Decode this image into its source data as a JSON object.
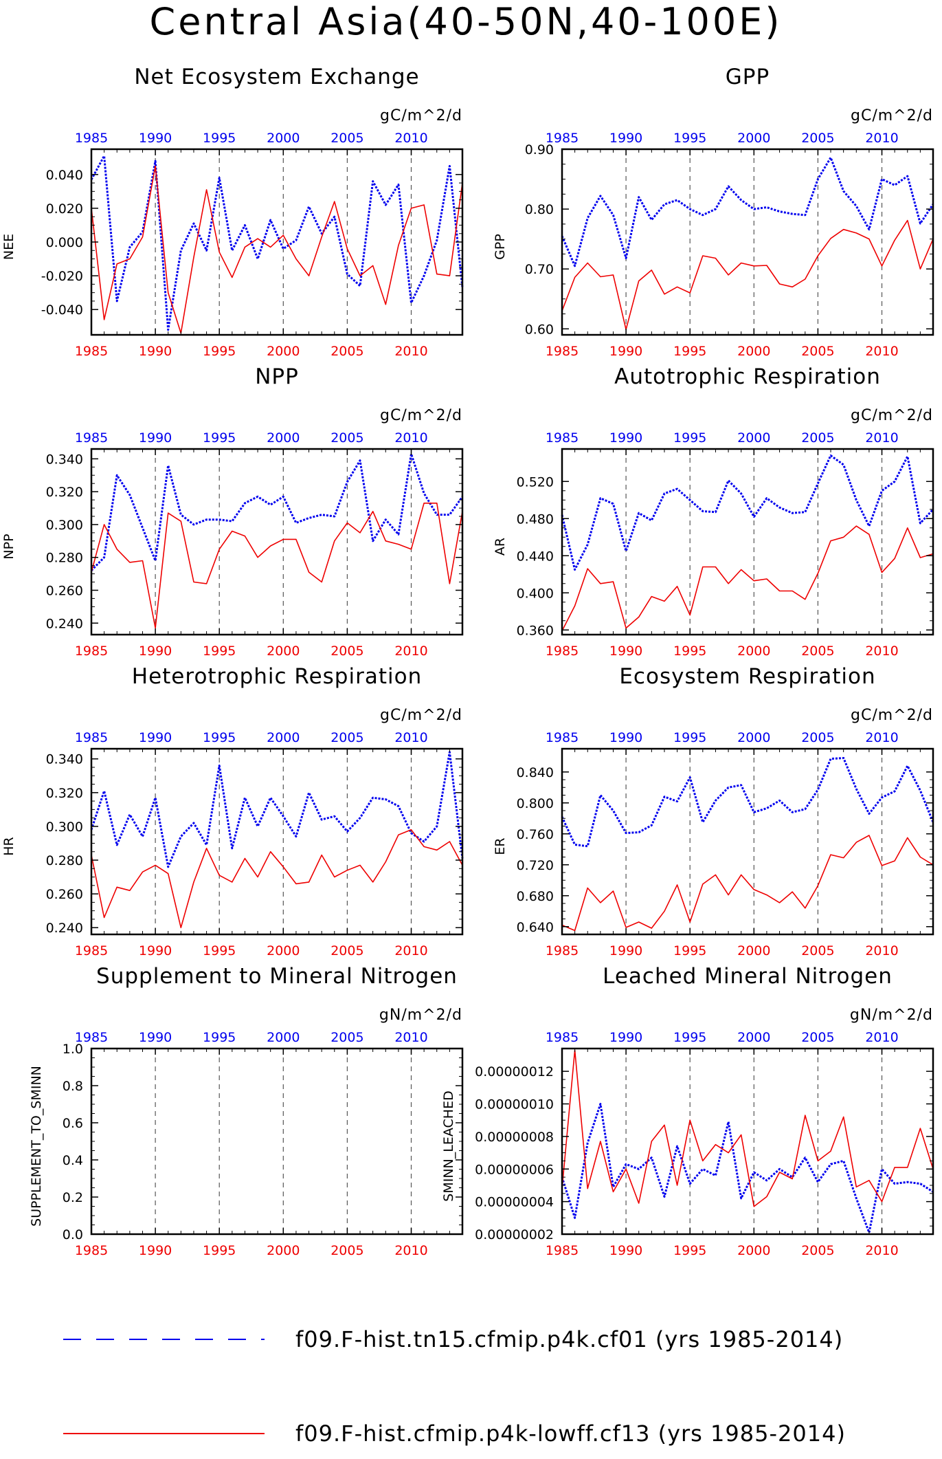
{
  "title": "Central Asia(40-50N,40-100E)",
  "colors": {
    "case1": "#0000ee",
    "case2": "#ee0000",
    "axis": "#000000",
    "grid": "#555555"
  },
  "legend": [
    {
      "label": "f09.F-hist.tn15.cfmip.p4k.cf01 (yrs 1985-2014)",
      "color": "#0000ee",
      "style": "dashed"
    },
    {
      "label": "f09.F-hist.cfmip.p4k-lowff.cf13 (yrs 1985-2014)",
      "color": "#ee0000",
      "style": "solid"
    }
  ],
  "chart_data": [
    {
      "type": "line",
      "title": "Net Ecosystem Exchange",
      "ylabel": "NEE",
      "units": "gC/m^2/d",
      "xlim": [
        1985,
        2014
      ],
      "xticks": [
        1985,
        1990,
        1995,
        2000,
        2005,
        2010
      ],
      "ylim": [
        -0.055,
        0.055
      ],
      "yticks": [
        -0.04,
        -0.02,
        0.0,
        0.02,
        0.04
      ],
      "ytick_labels": [
        "-0.040",
        "-0.020",
        "0.000",
        "0.020",
        "0.040"
      ],
      "x": [
        1985,
        1986,
        1987,
        1988,
        1989,
        1990,
        1991,
        1992,
        1993,
        1994,
        1995,
        1996,
        1997,
        1998,
        1999,
        2000,
        2001,
        2002,
        2003,
        2004,
        2005,
        2006,
        2007,
        2008,
        2009,
        2010,
        2011,
        2012,
        2013,
        2014
      ],
      "series": [
        {
          "color": "#0000ee",
          "style": "dashed",
          "values": [
            0.037,
            0.051,
            -0.035,
            -0.003,
            0.006,
            0.048,
            -0.052,
            -0.005,
            0.011,
            -0.005,
            0.038,
            -0.005,
            0.01,
            -0.01,
            0.013,
            -0.004,
            0.001,
            0.021,
            0.005,
            0.015,
            -0.019,
            -0.026,
            0.036,
            0.022,
            0.034,
            -0.036,
            -0.02,
            0.001,
            0.045,
            -0.027
          ]
        },
        {
          "color": "#ee0000",
          "style": "solid",
          "values": [
            0.02,
            -0.046,
            -0.013,
            -0.01,
            0.003,
            0.045,
            -0.03,
            -0.054,
            -0.009,
            0.031,
            -0.006,
            -0.021,
            -0.003,
            0.002,
            -0.003,
            0.004,
            -0.01,
            -0.02,
            0.003,
            0.024,
            -0.004,
            -0.02,
            -0.014,
            -0.037,
            -0.002,
            0.02,
            0.022,
            -0.019,
            -0.02,
            0.035
          ]
        }
      ]
    },
    {
      "type": "line",
      "title": "GPP",
      "ylabel": "GPP",
      "units": "gC/m^2/d",
      "xlim": [
        1985,
        2014
      ],
      "xticks": [
        1985,
        1990,
        1995,
        2000,
        2005,
        2010
      ],
      "ylim": [
        0.59,
        0.9
      ],
      "yticks": [
        0.6,
        0.7,
        0.8,
        0.9
      ],
      "ytick_labels": [
        "0.60",
        "0.70",
        "0.80",
        "0.90"
      ],
      "x": [
        1985,
        1986,
        1987,
        1988,
        1989,
        1990,
        1991,
        1992,
        1993,
        1994,
        1995,
        1996,
        1997,
        1998,
        1999,
        2000,
        2001,
        2002,
        2003,
        2004,
        2005,
        2006,
        2007,
        2008,
        2009,
        2010,
        2011,
        2012,
        2013,
        2014
      ],
      "series": [
        {
          "color": "#0000ee",
          "style": "dashed",
          "values": [
            0.755,
            0.705,
            0.785,
            0.822,
            0.79,
            0.718,
            0.82,
            0.782,
            0.808,
            0.815,
            0.8,
            0.79,
            0.8,
            0.838,
            0.815,
            0.8,
            0.803,
            0.796,
            0.792,
            0.79,
            0.85,
            0.886,
            0.83,
            0.805,
            0.766,
            0.85,
            0.84,
            0.855,
            0.776,
            0.808
          ]
        },
        {
          "color": "#ee0000",
          "style": "solid",
          "values": [
            0.63,
            0.686,
            0.71,
            0.687,
            0.69,
            0.599,
            0.68,
            0.698,
            0.658,
            0.67,
            0.66,
            0.722,
            0.718,
            0.69,
            0.71,
            0.705,
            0.706,
            0.675,
            0.67,
            0.683,
            0.722,
            0.751,
            0.766,
            0.76,
            0.75,
            0.705,
            0.748,
            0.781,
            0.7,
            0.75
          ]
        }
      ]
    },
    {
      "type": "line",
      "title": "NPP",
      "ylabel": "NPP",
      "units": "gC/m^2/d",
      "xlim": [
        1985,
        2014
      ],
      "xticks": [
        1985,
        1990,
        1995,
        2000,
        2005,
        2010
      ],
      "ylim": [
        0.233,
        0.346
      ],
      "yticks": [
        0.24,
        0.26,
        0.28,
        0.3,
        0.32,
        0.34
      ],
      "ytick_labels": [
        "0.240",
        "0.260",
        "0.280",
        "0.300",
        "0.320",
        "0.340"
      ],
      "x": [
        1985,
        1986,
        1987,
        1988,
        1989,
        1990,
        1991,
        1992,
        1993,
        1994,
        1995,
        1996,
        1997,
        1998,
        1999,
        2000,
        2001,
        2002,
        2003,
        2004,
        2005,
        2006,
        2007,
        2008,
        2009,
        2010,
        2011,
        2012,
        2013,
        2014
      ],
      "series": [
        {
          "color": "#0000ee",
          "style": "dashed",
          "values": [
            0.272,
            0.28,
            0.33,
            0.318,
            0.298,
            0.278,
            0.336,
            0.306,
            0.3,
            0.303,
            0.303,
            0.302,
            0.313,
            0.317,
            0.312,
            0.317,
            0.301,
            0.304,
            0.306,
            0.305,
            0.326,
            0.339,
            0.29,
            0.303,
            0.294,
            0.343,
            0.319,
            0.306,
            0.306,
            0.317
          ]
        },
        {
          "color": "#ee0000",
          "style": "solid",
          "values": [
            0.271,
            0.3,
            0.285,
            0.277,
            0.278,
            0.237,
            0.307,
            0.302,
            0.265,
            0.264,
            0.285,
            0.296,
            0.293,
            0.28,
            0.287,
            0.291,
            0.291,
            0.271,
            0.265,
            0.29,
            0.301,
            0.295,
            0.308,
            0.29,
            0.288,
            0.285,
            0.313,
            0.313,
            0.264,
            0.308
          ]
        }
      ]
    },
    {
      "type": "line",
      "title": "Autotrophic Respiration",
      "ylabel": "AR",
      "units": "gC/m^2/d",
      "xlim": [
        1985,
        2014
      ],
      "xticks": [
        1985,
        1990,
        1995,
        2000,
        2005,
        2010
      ],
      "ylim": [
        0.355,
        0.555
      ],
      "yticks": [
        0.36,
        0.4,
        0.44,
        0.48,
        0.52
      ],
      "ytick_labels": [
        "0.360",
        "0.400",
        "0.440",
        "0.480",
        "0.520"
      ],
      "x": [
        1985,
        1986,
        1987,
        1988,
        1989,
        1990,
        1991,
        1992,
        1993,
        1994,
        1995,
        1996,
        1997,
        1998,
        1999,
        2000,
        2001,
        2002,
        2003,
        2004,
        2005,
        2006,
        2007,
        2008,
        2009,
        2010,
        2011,
        2012,
        2013,
        2014
      ],
      "series": [
        {
          "color": "#0000ee",
          "style": "dashed",
          "values": [
            0.484,
            0.425,
            0.452,
            0.502,
            0.496,
            0.445,
            0.486,
            0.478,
            0.507,
            0.512,
            0.5,
            0.488,
            0.487,
            0.521,
            0.507,
            0.482,
            0.502,
            0.492,
            0.486,
            0.487,
            0.518,
            0.548,
            0.538,
            0.5,
            0.472,
            0.51,
            0.52,
            0.547,
            0.475,
            0.49
          ]
        },
        {
          "color": "#ee0000",
          "style": "solid",
          "values": [
            0.359,
            0.386,
            0.426,
            0.41,
            0.412,
            0.362,
            0.374,
            0.396,
            0.391,
            0.407,
            0.376,
            0.428,
            0.428,
            0.41,
            0.425,
            0.413,
            0.415,
            0.402,
            0.402,
            0.393,
            0.421,
            0.456,
            0.46,
            0.472,
            0.463,
            0.422,
            0.437,
            0.47,
            0.438,
            0.442
          ]
        }
      ]
    },
    {
      "type": "line",
      "title": "Heterotrophic Respiration",
      "ylabel": "HR",
      "units": "gC/m^2/d",
      "xlim": [
        1985,
        2014
      ],
      "xticks": [
        1985,
        1990,
        1995,
        2000,
        2005,
        2010
      ],
      "ylim": [
        0.236,
        0.346
      ],
      "yticks": [
        0.24,
        0.26,
        0.28,
        0.3,
        0.32,
        0.34
      ],
      "ytick_labels": [
        "0.240",
        "0.260",
        "0.280",
        "0.300",
        "0.320",
        "0.340"
      ],
      "x": [
        1985,
        1986,
        1987,
        1988,
        1989,
        1990,
        1991,
        1992,
        1993,
        1994,
        1995,
        1996,
        1997,
        1998,
        1999,
        2000,
        2001,
        2002,
        2003,
        2004,
        2005,
        2006,
        2007,
        2008,
        2009,
        2010,
        2011,
        2012,
        2013,
        2014
      ],
      "series": [
        {
          "color": "#0000ee",
          "style": "dashed",
          "values": [
            0.298,
            0.321,
            0.289,
            0.307,
            0.294,
            0.317,
            0.276,
            0.294,
            0.302,
            0.289,
            0.336,
            0.287,
            0.317,
            0.3,
            0.317,
            0.306,
            0.294,
            0.32,
            0.304,
            0.306,
            0.297,
            0.305,
            0.317,
            0.316,
            0.312,
            0.296,
            0.291,
            0.3,
            0.344,
            0.281
          ]
        },
        {
          "color": "#ee0000",
          "style": "solid",
          "values": [
            0.283,
            0.246,
            0.264,
            0.262,
            0.273,
            0.277,
            0.272,
            0.24,
            0.267,
            0.287,
            0.271,
            0.267,
            0.281,
            0.27,
            0.285,
            0.276,
            0.266,
            0.267,
            0.283,
            0.27,
            0.274,
            0.277,
            0.267,
            0.279,
            0.295,
            0.298,
            0.288,
            0.286,
            0.291,
            0.277
          ]
        }
      ]
    },
    {
      "type": "line",
      "title": "Ecosystem Respiration",
      "ylabel": "ER",
      "units": "gC/m^2/d",
      "xlim": [
        1985,
        2014
      ],
      "xticks": [
        1985,
        1990,
        1995,
        2000,
        2005,
        2010
      ],
      "ylim": [
        0.63,
        0.87
      ],
      "yticks": [
        0.64,
        0.68,
        0.72,
        0.76,
        0.8,
        0.84
      ],
      "ytick_labels": [
        "0.640",
        "0.680",
        "0.720",
        "0.760",
        "0.800",
        "0.840"
      ],
      "x": [
        1985,
        1986,
        1987,
        1988,
        1989,
        1990,
        1991,
        1992,
        1993,
        1994,
        1995,
        1996,
        1997,
        1998,
        1999,
        2000,
        2001,
        2002,
        2003,
        2004,
        2005,
        2006,
        2007,
        2008,
        2009,
        2010,
        2011,
        2012,
        2013,
        2014
      ],
      "series": [
        {
          "color": "#0000ee",
          "style": "dashed",
          "values": [
            0.782,
            0.746,
            0.744,
            0.81,
            0.79,
            0.761,
            0.762,
            0.771,
            0.808,
            0.802,
            0.833,
            0.775,
            0.803,
            0.82,
            0.823,
            0.788,
            0.793,
            0.803,
            0.788,
            0.792,
            0.817,
            0.857,
            0.858,
            0.818,
            0.786,
            0.807,
            0.815,
            0.848,
            0.816,
            0.775
          ]
        },
        {
          "color": "#ee0000",
          "style": "solid",
          "values": [
            0.642,
            0.635,
            0.69,
            0.671,
            0.686,
            0.639,
            0.646,
            0.638,
            0.66,
            0.694,
            0.646,
            0.695,
            0.707,
            0.681,
            0.707,
            0.688,
            0.681,
            0.671,
            0.685,
            0.664,
            0.693,
            0.733,
            0.729,
            0.749,
            0.758,
            0.719,
            0.725,
            0.755,
            0.73,
            0.72
          ]
        }
      ]
    },
    {
      "type": "line",
      "title": "Supplement to Mineral Nitrogen",
      "ylabel": "SUPPLEMENT_TO_SMINN",
      "units": "gN/m^2/d",
      "xlim": [
        1985,
        2014
      ],
      "xticks": [
        1985,
        1990,
        1995,
        2000,
        2005,
        2010
      ],
      "ylim": [
        0.0,
        1.0
      ],
      "yticks": [
        0.0,
        0.2,
        0.4,
        0.6,
        0.8,
        1.0
      ],
      "ytick_labels": [
        "0.0",
        "0.2",
        "0.4",
        "0.6",
        "0.8",
        "1.0"
      ],
      "x": [],
      "series": []
    },
    {
      "type": "line",
      "title": "Leached Mineral Nitrogen",
      "ylabel": "SMINN_LEACHED",
      "units": "gN/m^2/d",
      "xlim": [
        1985,
        2014
      ],
      "xticks": [
        1985,
        1990,
        1995,
        2000,
        2005,
        2010
      ],
      "ylim": [
        2e-08,
        1.34e-07
      ],
      "yticks": [
        2e-08,
        4e-08,
        6e-08,
        8e-08,
        1e-07,
        1.2e-07
      ],
      "ytick_labels": [
        "0.00000002",
        "0.00000004",
        "0.00000006",
        "0.00000008",
        "0.00000010",
        "0.00000012"
      ],
      "x": [
        1985,
        1986,
        1987,
        1988,
        1989,
        1990,
        1991,
        1992,
        1993,
        1994,
        1995,
        1996,
        1997,
        1998,
        1999,
        2000,
        2001,
        2002,
        2003,
        2004,
        2005,
        2006,
        2007,
        2008,
        2009,
        2010,
        2011,
        2012,
        2013,
        2014
      ],
      "series": [
        {
          "color": "#0000ee",
          "style": "dashed",
          "values": [
            5.5e-08,
            3e-08,
            7.6e-08,
            1e-07,
            4.9e-08,
            6.3e-08,
            6e-08,
            6.7e-08,
            4.3e-08,
            7.4e-08,
            5.1e-08,
            6e-08,
            5.6e-08,
            8.9e-08,
            4.2e-08,
            5.8e-08,
            5.3e-08,
            6e-08,
            5.5e-08,
            6.7e-08,
            5.2e-08,
            6.3e-08,
            6.5e-08,
            4.2e-08,
            2.1e-08,
            6e-08,
            5.1e-08,
            5.2e-08,
            5.1e-08,
            4.6e-08
          ]
        },
        {
          "color": "#ee0000",
          "style": "solid",
          "values": [
            4.8e-08,
            1.33e-07,
            4.8e-08,
            7.7e-08,
            4.6e-08,
            6e-08,
            3.9e-08,
            7.7e-08,
            8.7e-08,
            5e-08,
            9e-08,
            6.5e-08,
            7.5e-08,
            7e-08,
            8.1e-08,
            3.7e-08,
            4.3e-08,
            5.8e-08,
            5.4e-08,
            9.3e-08,
            6.5e-08,
            7.1e-08,
            9.2e-08,
            4.9e-08,
            5.3e-08,
            4e-08,
            6.1e-08,
            6.1e-08,
            8.5e-08,
            6e-08
          ]
        }
      ]
    }
  ]
}
